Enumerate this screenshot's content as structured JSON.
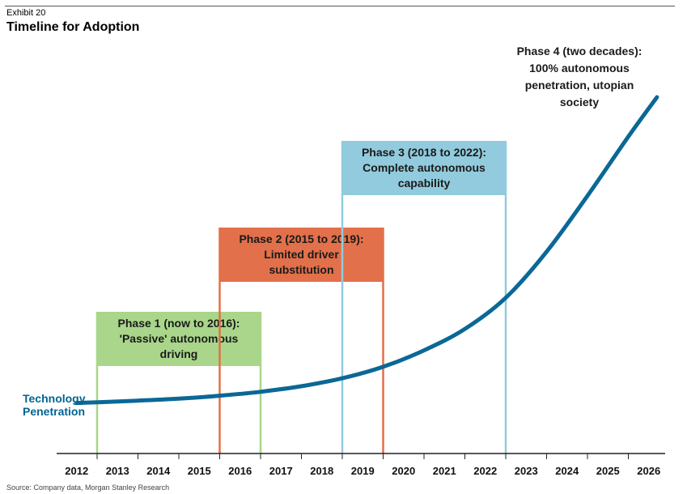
{
  "header": {
    "exhibit": "Exhibit 20",
    "title": "Timeline for Adoption"
  },
  "source": "Source: Company data, Morgan Stanley Research",
  "chart_data": {
    "type": "line",
    "title": "Timeline for Adoption",
    "xlabel": "",
    "ylabel": "",
    "x_ticks": [
      "2012",
      "2013",
      "2014",
      "2015",
      "2016",
      "2017",
      "2018",
      "2019",
      "2020",
      "2021",
      "2022",
      "2023",
      "2024",
      "2025",
      "2026"
    ],
    "x_range": [
      2011.5,
      2026.5
    ],
    "y_range": [
      0,
      100
    ],
    "grid": false,
    "series": [
      {
        "name": "Technology Penetration",
        "color": "#0a6896",
        "points": [
          [
            2011.5,
            7
          ],
          [
            2012,
            7.2
          ],
          [
            2013,
            7.7
          ],
          [
            2014,
            8.3
          ],
          [
            2015,
            9.2
          ],
          [
            2016,
            10.4
          ],
          [
            2017,
            12.1
          ],
          [
            2018,
            14.5
          ],
          [
            2019,
            18
          ],
          [
            2020,
            23
          ],
          [
            2021,
            29.5
          ],
          [
            2022,
            39
          ],
          [
            2023,
            53
          ],
          [
            2024,
            70
          ],
          [
            2025,
            88
          ],
          [
            2025.7,
            100
          ]
        ]
      }
    ],
    "phases": [
      {
        "lines": [
          "Phase 1 (now to 2016):",
          "'Passive' autonomous",
          "driving"
        ],
        "start": 2012,
        "end": 2016,
        "level": 1,
        "color": "#a9d68a"
      },
      {
        "lines": [
          "Phase 2 (2015 to 2019):",
          "Limited driver",
          "substitution"
        ],
        "start": 2015,
        "end": 2019,
        "level": 2,
        "color": "#e2704a"
      },
      {
        "lines": [
          "Phase 3 (2018 to 2022):",
          "Complete autonomous",
          "capability"
        ],
        "start": 2018,
        "end": 2022,
        "level": 3,
        "color": "#92cbdd"
      }
    ],
    "annotations": [
      {
        "lines": [
          "Phase 4 (two decades):",
          "100% autonomous",
          "penetration, utopian",
          "society"
        ]
      }
    ]
  }
}
